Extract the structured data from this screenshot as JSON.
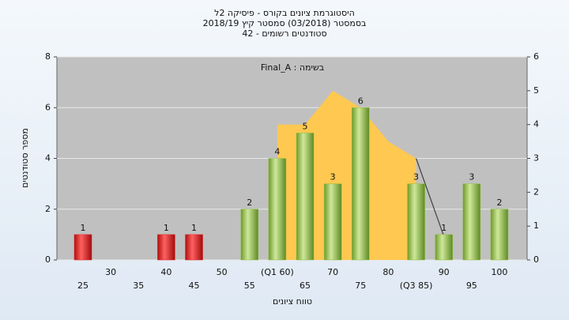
{
  "chart_data": {
    "type": "bar",
    "title": [
      "היסטוגרמת ציונים בקורס - פיסיקה 2ל",
      "בסמסטר (03/2018) סמסטר קיץ 2018/19",
      "42 - סטודנטים רשומים"
    ],
    "annotation": "Final_A : בשימה",
    "xlabel": "טווח ציונים",
    "ylabel": "מספר סטודנטים",
    "categories": [
      "25",
      "30",
      "35",
      "40",
      "45",
      "50",
      "55",
      "(Q1 60)",
      "65",
      "70",
      "75",
      "80",
      "(Q3 85)",
      "90",
      "95",
      "100"
    ],
    "values": [
      1,
      0,
      0,
      1,
      1,
      0,
      2,
      4,
      5,
      3,
      6,
      0,
      3,
      1,
      3,
      2
    ],
    "colors": [
      "#e02020",
      "#8fbf3f",
      "#8fbf3f",
      "#e02020",
      "#e02020",
      "#8fbf3f",
      "#8fbf3f",
      "#8fbf3f",
      "#8fbf3f",
      "#8fbf3f",
      "#8fbf3f",
      "#8fbf3f",
      "#8fbf3f",
      "#8fbf3f",
      "#8fbf3f",
      "#8fbf3f"
    ],
    "series": [
      {
        "type": "area",
        "axis": "y2",
        "color": "#ffc850",
        "values": [
          null,
          null,
          null,
          null,
          null,
          null,
          null,
          4,
          4,
          5,
          4.5,
          3.5,
          3,
          null,
          null,
          null
        ]
      },
      {
        "type": "line",
        "axis": "y2",
        "color": "#404040",
        "values": [
          null,
          null,
          null,
          null,
          null,
          null,
          null,
          null,
          null,
          null,
          null,
          null,
          3,
          0.7,
          null,
          null
        ]
      }
    ],
    "ylim": [
      0,
      8
    ],
    "yticks": [
      0,
      2,
      4,
      6,
      8
    ],
    "y2lim": [
      0,
      6
    ],
    "y2ticks": [
      0,
      1,
      2,
      3,
      4,
      5,
      6
    ],
    "grid": true
  }
}
